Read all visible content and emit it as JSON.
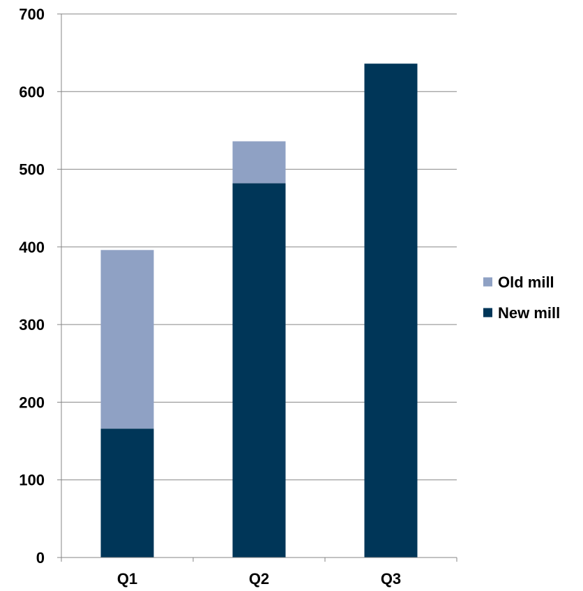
{
  "chart_data": {
    "type": "bar",
    "stacked": true,
    "categories": [
      "Q1",
      "Q2",
      "Q3"
    ],
    "series": [
      {
        "name": "New mill",
        "color": "#003658",
        "values": [
          166,
          482,
          636
        ]
      },
      {
        "name": "Old mill",
        "color": "#8FA1C4",
        "values": [
          230,
          54,
          0
        ]
      }
    ],
    "ylim": [
      0,
      700
    ],
    "yticks": [
      0,
      100,
      200,
      300,
      400,
      500,
      600,
      700
    ],
    "grid": true,
    "legend": {
      "position": "right",
      "order": [
        "Old mill",
        "New mill"
      ]
    }
  }
}
